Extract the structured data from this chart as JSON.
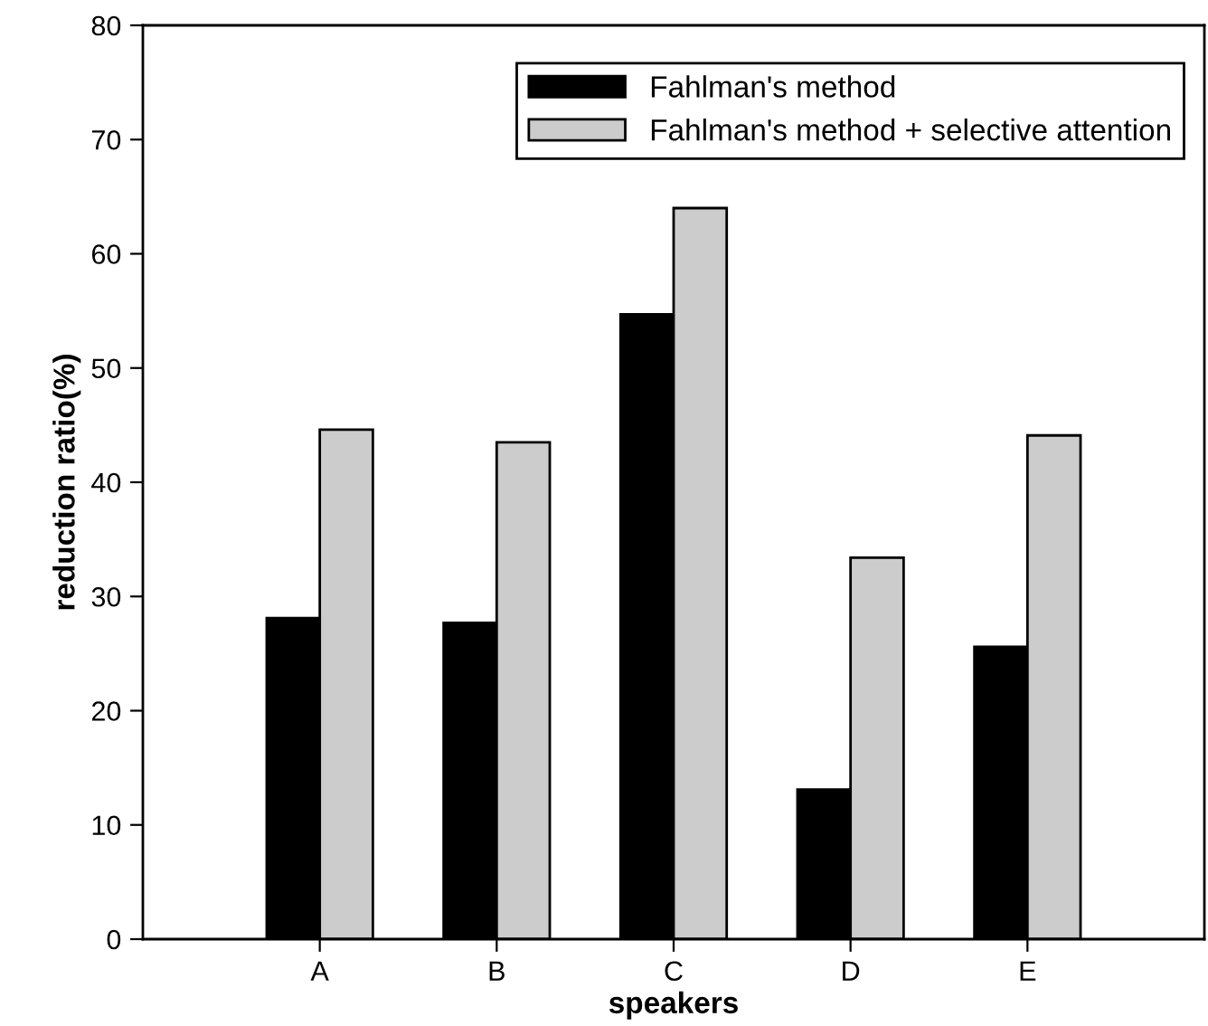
{
  "chart_data": {
    "type": "bar",
    "xlabel": "speakers",
    "ylabel": "reduction ratio(%)",
    "categories": [
      "A",
      "B",
      "C",
      "D",
      "E"
    ],
    "series": [
      {
        "name": "Fahlman's method",
        "color": "#000000",
        "values": [
          28.1,
          27.7,
          54.7,
          13.1,
          25.6
        ]
      },
      {
        "name": "Fahlman's method + selective attention",
        "color": "#cccccc",
        "values": [
          44.6,
          43.5,
          64.0,
          33.4,
          44.1
        ]
      }
    ],
    "ylim": [
      0,
      80
    ],
    "yticks": [
      0,
      10,
      20,
      30,
      40,
      50,
      60,
      70,
      80
    ],
    "grid": false,
    "legend": "top right"
  }
}
